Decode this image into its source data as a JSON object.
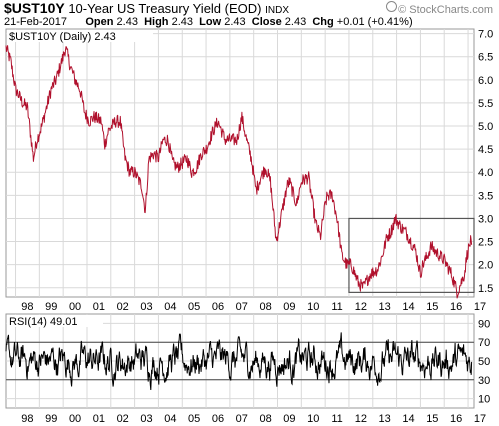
{
  "header": {
    "symbol": "$UST10Y",
    "name": "10-Year US Treasury Yield (EOD)",
    "exchange": "INDX",
    "date": "21-Feb-2017",
    "open_label": "Open",
    "open": "2.43",
    "high_label": "High",
    "high": "2.43",
    "low_label": "Low",
    "low": "2.43",
    "close_label": "Close",
    "close": "2.43",
    "chg_label": "Chg",
    "chg": "+0.01 (+0.41%)",
    "brand": "© StockCharts.com"
  },
  "colors": {
    "price_line": "#b0102c",
    "rsi_line": "#000000",
    "grid": "#d9d9d9",
    "box": "#555555"
  },
  "chart_data": [
    {
      "type": "line",
      "legend": "$UST10Y (Daily) 2.43",
      "x_ticks": [
        "98",
        "99",
        "00",
        "01",
        "02",
        "03",
        "04",
        "05",
        "06",
        "07",
        "08",
        "09",
        "10",
        "11",
        "12",
        "13",
        "14",
        "15",
        "16",
        "17"
      ],
      "x_range": [
        1997.6,
        2017.25
      ],
      "ylim": [
        1.3,
        7.1
      ],
      "y_ticks": [
        "1.5",
        "2.0",
        "2.5",
        "3.0",
        "3.5",
        "4.0",
        "4.5",
        "5.0",
        "5.5",
        "6.0",
        "6.5",
        "7.0"
      ],
      "grid": true,
      "annotation_box": {
        "x": [
          2012.0,
          2017.25
        ],
        "y": [
          1.4,
          3.0
        ]
      },
      "series": [
        {
          "x": [
            1997.6,
            1997.8,
            1998.0,
            1998.3,
            1998.5,
            1998.75,
            1998.9,
            1999.1,
            1999.3,
            1999.5,
            1999.7,
            2000.0,
            2000.1,
            2000.3,
            2000.5,
            2000.7,
            2000.9,
            2001.1,
            2001.3,
            2001.6,
            2001.75,
            2001.9,
            2002.2,
            2002.4,
            2002.6,
            2002.8,
            2003.0,
            2003.3,
            2003.45,
            2003.6,
            2003.8,
            2004.0,
            2004.2,
            2004.4,
            2004.6,
            2004.8,
            2005.0,
            2005.2,
            2005.4,
            2005.6,
            2005.8,
            2006.0,
            2006.3,
            2006.5,
            2006.8,
            2007.0,
            2007.3,
            2007.5,
            2007.7,
            2007.9,
            2008.1,
            2008.3,
            2008.5,
            2008.7,
            2008.95,
            2009.1,
            2009.4,
            2009.5,
            2009.8,
            2010.0,
            2010.3,
            2010.6,
            2010.8,
            2011.0,
            2011.1,
            2011.3,
            2011.5,
            2011.7,
            2011.9,
            2012.1,
            2012.4,
            2012.6,
            2012.9,
            2013.2,
            2013.4,
            2013.6,
            2013.75,
            2013.95,
            2014.2,
            2014.4,
            2014.6,
            2014.8,
            2015.0,
            2015.1,
            2015.3,
            2015.45,
            2015.6,
            2015.8,
            2016.0,
            2016.3,
            2016.55,
            2016.7,
            2016.85,
            2016.95,
            2017.1,
            2017.15
          ],
          "y": [
            6.7,
            6.4,
            5.8,
            5.5,
            5.4,
            4.3,
            4.7,
            5.0,
            5.4,
            5.8,
            6.0,
            6.5,
            6.7,
            6.3,
            6.0,
            5.8,
            5.3,
            5.1,
            5.2,
            5.1,
            4.6,
            4.9,
            5.1,
            5.1,
            4.3,
            4.0,
            4.0,
            3.7,
            3.15,
            4.3,
            4.4,
            4.3,
            4.7,
            4.7,
            4.2,
            4.1,
            4.2,
            4.3,
            4.0,
            4.1,
            4.4,
            4.5,
            4.9,
            5.1,
            4.7,
            4.7,
            4.7,
            5.2,
            4.7,
            4.3,
            3.6,
            3.9,
            4.1,
            3.8,
            2.5,
            2.9,
            3.7,
            3.8,
            3.3,
            3.8,
            3.9,
            2.9,
            2.6,
            3.3,
            3.5,
            3.5,
            3.0,
            2.2,
            2.0,
            2.0,
            1.6,
            1.5,
            1.8,
            1.9,
            2.2,
            2.6,
            2.7,
            3.0,
            2.8,
            2.7,
            2.5,
            2.3,
            1.8,
            2.0,
            2.2,
            2.4,
            2.3,
            2.2,
            2.1,
            1.8,
            1.4,
            1.6,
            1.8,
            2.2,
            2.5,
            2.43
          ]
        }
      ]
    },
    {
      "type": "line",
      "legend": "RSI(14) 49.01",
      "x_ticks": [
        "98",
        "99",
        "00",
        "01",
        "02",
        "03",
        "04",
        "05",
        "06",
        "07",
        "08",
        "09",
        "10",
        "11",
        "12",
        "13",
        "14",
        "15",
        "16",
        "17"
      ],
      "x_range": [
        1997.6,
        2017.25
      ],
      "ylim": [
        0,
        100
      ],
      "y_ticks": [
        "10",
        "30",
        "50",
        "70",
        "90"
      ],
      "reference_lines": [
        30,
        70
      ],
      "last_value": 49.01
    }
  ]
}
